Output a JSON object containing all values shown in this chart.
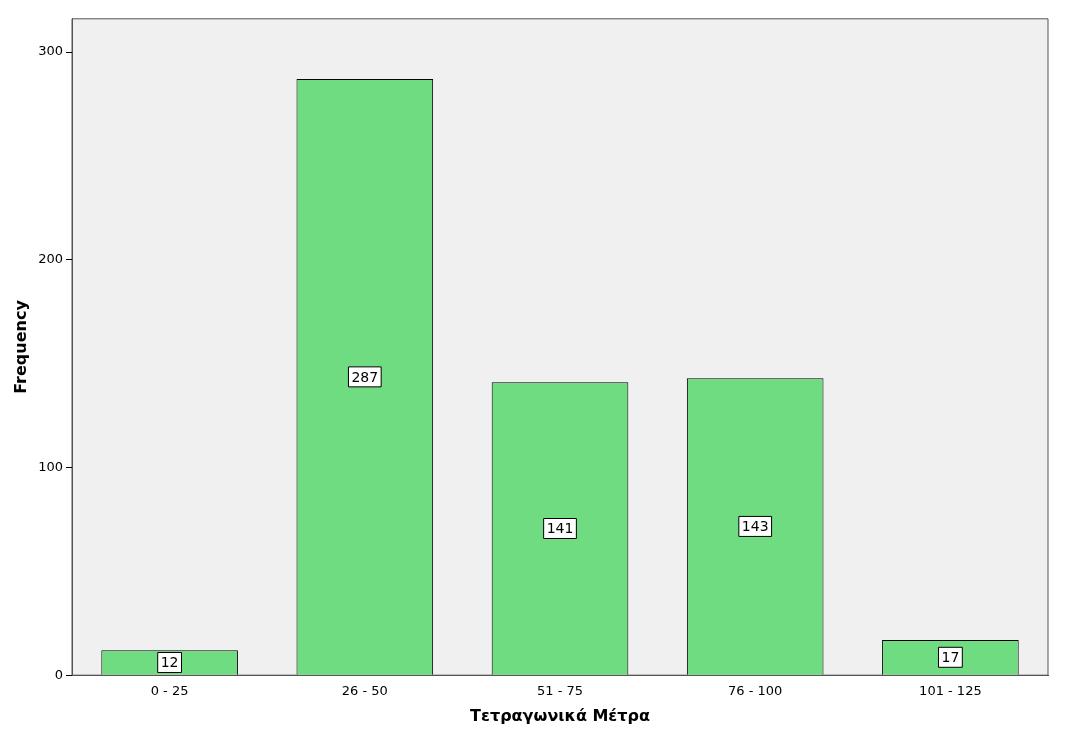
{
  "chart_data": {
    "type": "bar",
    "xlabel": "Τετραγωνικά Μέτρα",
    "ylabel": "Frequency",
    "categories": [
      "0 - 25",
      "26 - 50",
      "51 - 75",
      "76 - 100",
      "101 - 125"
    ],
    "values": [
      12,
      287,
      141,
      143,
      17
    ],
    "color": "#70dc82",
    "ylim": [
      0,
      316
    ],
    "yticks": [
      0,
      100,
      200,
      300
    ],
    "grid": false,
    "legend": false,
    "data_labels": true
  }
}
